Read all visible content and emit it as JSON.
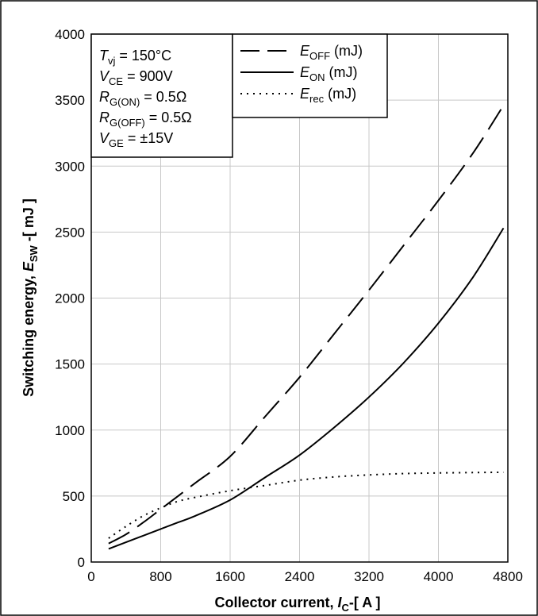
{
  "chart_data": {
    "type": "line",
    "xlabel": {
      "main": "Collector current, ",
      "var": "I",
      "sub": "C",
      "unit": "-[ A ]"
    },
    "ylabel": {
      "main": "Switching energy, ",
      "var": "E",
      "sub": "SW",
      "unit": " -[ mJ ]"
    },
    "xlim": [
      0,
      4800
    ],
    "ylim": [
      0,
      4000
    ],
    "x_ticks": [
      "0",
      "800",
      "1600",
      "2400",
      "3200",
      "4000",
      "4800"
    ],
    "y_ticks": [
      "0",
      "500",
      "1000",
      "1500",
      "2000",
      "2500",
      "3000",
      "3500",
      "4000"
    ],
    "grid": true,
    "conditions": [
      {
        "var": "T",
        "sub": "vj",
        "rest": " = 150°C"
      },
      {
        "var": "V",
        "sub": "CE",
        "rest": " = 900V"
      },
      {
        "var": "R",
        "sub": "G(ON)",
        "rest": " = 0.5Ω"
      },
      {
        "var": "R",
        "sub": "G(OFF)",
        "rest": " = 0.5Ω"
      },
      {
        "var": "V",
        "sub": "GE",
        "rest": " = ±15V"
      }
    ],
    "series": [
      {
        "name": "E_OFF (mJ)",
        "label_var": "E",
        "label_sub": "OFF",
        "label_rest": " (mJ)",
        "style": "dashed",
        "x": [
          200,
          400,
          600,
          800,
          1000,
          1200,
          1600,
          2000,
          2400,
          2800,
          3200,
          3600,
          4000,
          4400,
          4750
        ],
        "y": [
          140,
          210,
          300,
          400,
          500,
          600,
          800,
          1100,
          1400,
          1730,
          2060,
          2400,
          2740,
          3100,
          3460
        ]
      },
      {
        "name": "E_ON (mJ)",
        "label_var": "E",
        "label_sub": "ON",
        "label_rest": " (mJ)",
        "style": "solid",
        "x": [
          200,
          400,
          600,
          800,
          1000,
          1200,
          1600,
          2000,
          2400,
          2800,
          3200,
          3600,
          4000,
          4400,
          4750
        ],
        "y": [
          100,
          150,
          200,
          250,
          300,
          350,
          470,
          640,
          810,
          1020,
          1250,
          1510,
          1810,
          2160,
          2530
        ]
      },
      {
        "name": "E_rec (mJ)",
        "label_var": "E",
        "label_sub": "rec",
        "label_rest": " (mJ)",
        "style": "dotted",
        "x": [
          200,
          400,
          600,
          800,
          1000,
          1200,
          1600,
          2000,
          2400,
          2800,
          3200,
          3600,
          4000,
          4400,
          4750
        ],
        "y": [
          180,
          270,
          350,
          410,
          460,
          490,
          540,
          580,
          620,
          645,
          660,
          670,
          675,
          678,
          680
        ]
      }
    ]
  }
}
